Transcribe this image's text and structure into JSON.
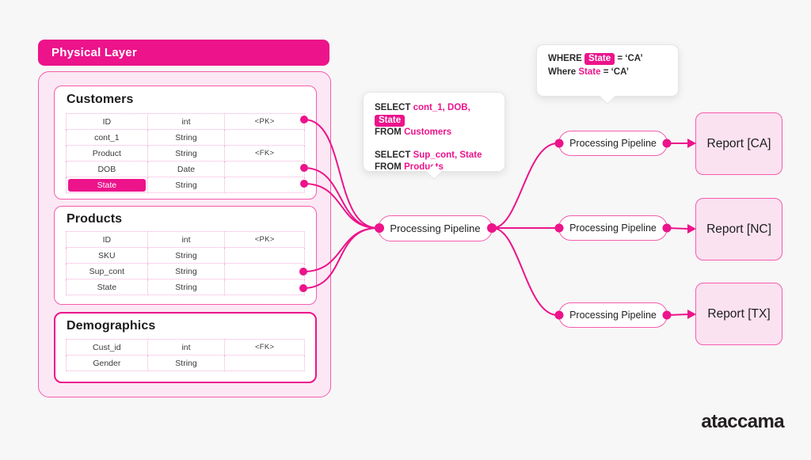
{
  "colors": {
    "pink": "#EC138B",
    "node_border": "#F55CAD",
    "panel_fill": "#FCE8F4",
    "report_fill": "#FBE2F0",
    "cell_border": "#F5ABD7",
    "background": "#F7F7F7"
  },
  "header": {
    "physical_layer_label": "Physical Layer"
  },
  "tables": [
    {
      "title": "Customers",
      "rows": [
        {
          "name": "ID",
          "type": "int",
          "key": "<PK>"
        },
        {
          "name": "cont_1",
          "type": "String",
          "key": ""
        },
        {
          "name": "Product",
          "type": "String",
          "key": "<FK>"
        },
        {
          "name": "DOB",
          "type": "Date",
          "key": ""
        },
        {
          "name": "State",
          "type": "String",
          "key": "",
          "highlight": true
        }
      ]
    },
    {
      "title": "Products",
      "rows": [
        {
          "name": "ID",
          "type": "int",
          "key": "<PK>"
        },
        {
          "name": "SKU",
          "type": "String",
          "key": ""
        },
        {
          "name": "Sup_cont",
          "type": "String",
          "key": ""
        },
        {
          "name": "State",
          "type": "String",
          "key": ""
        }
      ]
    },
    {
      "title": "Demographics",
      "rows": [
        {
          "name": "Cust_id",
          "type": "int",
          "key": "<FK>"
        },
        {
          "name": "Gender",
          "type": "String",
          "key": ""
        }
      ]
    }
  ],
  "sql_tooltip": {
    "select1_keyword": "SELECT",
    "select1_fields": "cont_1, DOB,",
    "select1_highlight": "State",
    "from1_keyword": "FROM",
    "from1_table": "Customers",
    "select2_keyword": "SELECT",
    "select2_fields": "Sup_cont, State",
    "from2_keyword": "FROM",
    "from2_table": "Products"
  },
  "where_tooltip": {
    "line1_keyword": "WHERE",
    "line1_field": "State",
    "line1_rest": "= ‘CA’",
    "line2_keyword": "Where",
    "line2_field": "State",
    "line2_rest": "= ‘CA’"
  },
  "pipelines": {
    "central": "Processing Pipeline",
    "top": "Processing Pipeline",
    "middle": "Processing Pipeline",
    "bottom": "Processing Pipeline"
  },
  "reports": [
    {
      "label": "Report [CA]"
    },
    {
      "label": "Report [NC]"
    },
    {
      "label": "Report [TX]"
    }
  ],
  "logo": "ataccama"
}
